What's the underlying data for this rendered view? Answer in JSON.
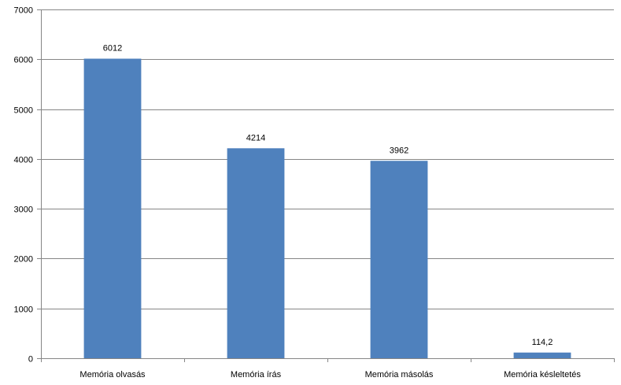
{
  "chart_data": {
    "type": "bar",
    "title": "",
    "xlabel": "",
    "ylabel": "",
    "categories": [
      "Memória olvasás",
      "Memória írás",
      "Memória másolás",
      "Memória késleltetés"
    ],
    "values": [
      6012,
      4214,
      3962,
      114.2
    ],
    "value_labels": [
      "6012",
      "4214",
      "3962",
      "114,2"
    ],
    "ylim": [
      0,
      7000
    ],
    "y_ticks": [
      0,
      1000,
      2000,
      3000,
      4000,
      5000,
      6000,
      7000
    ],
    "grid": true,
    "legend": "none",
    "colors": {
      "bar": "#4F81BD",
      "grid": "#868686",
      "axis": "#868686"
    }
  }
}
